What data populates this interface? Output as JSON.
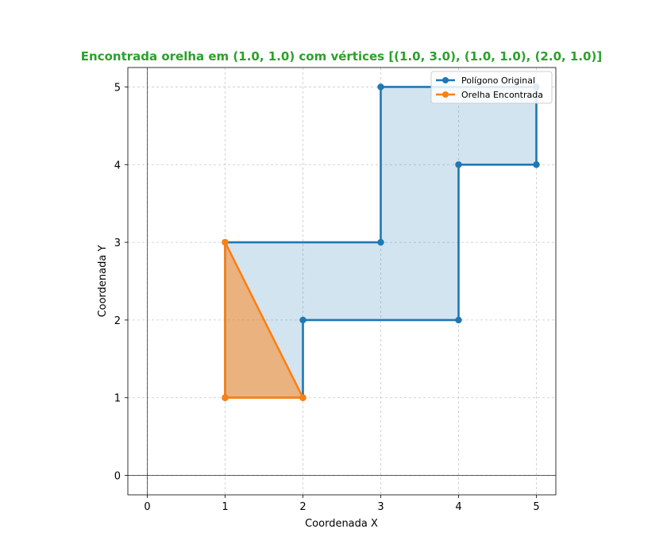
{
  "chart_data": {
    "type": "line",
    "title": "Encontrada orelha em (1.0, 1.0) com vértices [(1.0, 3.0), (1.0, 1.0), (2.0, 1.0)]",
    "title_color": "#2ca02c",
    "xlabel": "Coordenada X",
    "ylabel": "Coordenada Y",
    "xlim": [
      -0.25,
      5.25
    ],
    "ylim": [
      -0.25,
      5.25
    ],
    "xticks": [
      0,
      1,
      2,
      3,
      4,
      5
    ],
    "yticks": [
      0,
      1,
      2,
      3,
      4,
      5
    ],
    "grid": true,
    "legend_position": "top-right",
    "series": [
      {
        "name": "Polígono Original",
        "color": "#1f77b4",
        "fill_color": "#1f77b4",
        "closed": true,
        "points": [
          [
            1,
            1
          ],
          [
            2,
            1
          ],
          [
            2,
            2
          ],
          [
            4,
            2
          ],
          [
            4,
            4
          ],
          [
            5,
            4
          ],
          [
            5,
            5
          ],
          [
            3,
            5
          ],
          [
            3,
            3
          ],
          [
            1,
            3
          ]
        ]
      },
      {
        "name": "Orelha Encontrada",
        "color": "#ff7f0e",
        "fill_color": "#ff7f0e",
        "closed": true,
        "points": [
          [
            1,
            3
          ],
          [
            1,
            1
          ],
          [
            2,
            1
          ]
        ]
      }
    ]
  }
}
